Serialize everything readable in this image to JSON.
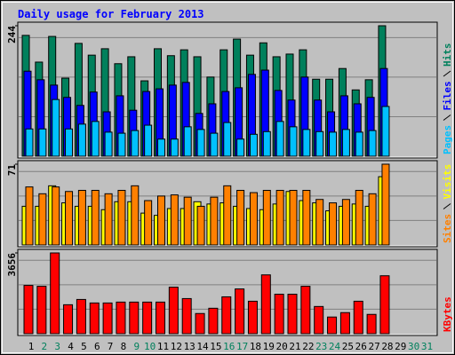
{
  "title": "Daily usage for February 2013",
  "chart_data": [
    {
      "type": "bar",
      "categories": [
        "1",
        "2",
        "3",
        "4",
        "5",
        "6",
        "7",
        "8",
        "9",
        "10",
        "11",
        "12",
        "13",
        "14",
        "15",
        "16",
        "17",
        "18",
        "19",
        "20",
        "21",
        "22",
        "23",
        "24",
        "25",
        "26",
        "27",
        "28",
        "29",
        "30",
        "31"
      ],
      "x_label_colors": [
        "#000000",
        "#00805C",
        "#00805C",
        "#000000",
        "#000000",
        "#000000",
        "#000000",
        "#000000",
        "#00805C",
        "#00805C",
        "#000000",
        "#000000",
        "#000000",
        "#000000",
        "#000000",
        "#00805C",
        "#00805C",
        "#000000",
        "#000000",
        "#000000",
        "#000000",
        "#000000",
        "#00805C",
        "#00805C",
        "#000000",
        "#000000",
        "#000000",
        "#000000",
        "#000000",
        "#00805C",
        "#00805C"
      ],
      "ylim": [
        0,
        244
      ],
      "yticks": [
        244
      ],
      "series": [
        {
          "name": "Hits",
          "color": "#00805C",
          "values": [
            226,
            176,
            224,
            146,
            211,
            189,
            201,
            173,
            186,
            141,
            201,
            188,
            199,
            186,
            148,
            199,
            219,
            189,
            212,
            186,
            191,
            199,
            144,
            144,
            164,
            124,
            143,
            244,
            null,
            null,
            null
          ]
        },
        {
          "name": "Files",
          "color": "#0000FF",
          "values": [
            159,
            143,
            133,
            110,
            95,
            120,
            83,
            113,
            86,
            121,
            126,
            133,
            138,
            80,
            98,
            121,
            128,
            153,
            161,
            123,
            105,
            148,
            105,
            83,
            113,
            98,
            110,
            164,
            null,
            null,
            null
          ]
        },
        {
          "name": "Pages",
          "color": "#00C0FF",
          "values": [
            51,
            51,
            106,
            51,
            60,
            65,
            45,
            43,
            48,
            58,
            32,
            32,
            55,
            50,
            43,
            63,
            32,
            41,
            46,
            65,
            55,
            50,
            46,
            45,
            50,
            45,
            48,
            93,
            null,
            null,
            null
          ]
        }
      ]
    },
    {
      "type": "bar",
      "ylim": [
        0,
        71
      ],
      "yticks": [
        71
      ],
      "series": [
        {
          "name": "Visits",
          "color": "#FFFF00",
          "values": [
            34,
            34,
            52,
            37,
            34,
            34,
            31,
            38,
            38,
            28,
            26,
            32,
            32,
            38,
            36,
            37,
            34,
            32,
            31,
            36,
            47,
            39,
            37,
            30,
            34,
            36,
            34,
            60,
            null,
            null,
            null
          ]
        },
        {
          "name": "Sites",
          "color": "#FF8000",
          "values": [
            51,
            45,
            51,
            47,
            48,
            48,
            45,
            48,
            52,
            39,
            43,
            44,
            42,
            34,
            42,
            52,
            48,
            46,
            48,
            48,
            48,
            48,
            40,
            37,
            40,
            48,
            45,
            71,
            null,
            null,
            null
          ]
        }
      ]
    },
    {
      "type": "bar",
      "ylim": [
        0,
        3656
      ],
      "yticks": [
        3656
      ],
      "series": [
        {
          "name": "KBytes",
          "color": "#FF0000",
          "values": [
            2186,
            2146,
            3656,
            1311,
            1550,
            1391,
            1391,
            1431,
            1431,
            1431,
            1431,
            2106,
            1590,
            914,
            1152,
            1669,
            2027,
            1470,
            2663,
            1788,
            1788,
            2146,
            1232,
            755,
            954,
            1470,
            874,
            2623,
            null,
            null,
            null
          ]
        }
      ]
    }
  ]
}
